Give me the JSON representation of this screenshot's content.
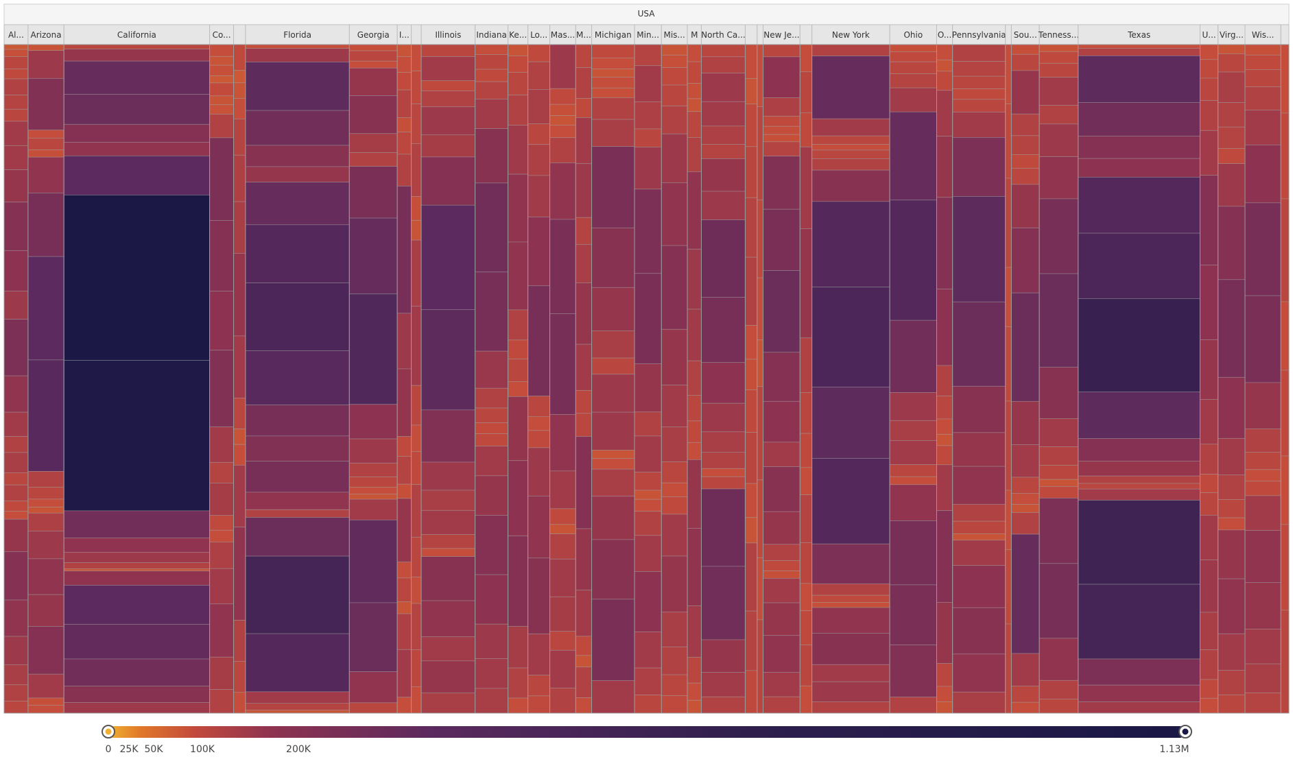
{
  "chart_data": {
    "type": "treemap",
    "root_label": "USA",
    "color_scale": {
      "min_label": "0",
      "max_label": "1.13M",
      "tick_labels": [
        "0",
        "25K",
        "50K",
        "100K",
        "200K",
        "1.13M"
      ],
      "tick_values": [
        0,
        25000,
        50000,
        100000,
        200000,
        1130000
      ],
      "stops": [
        "#f0b030",
        "#e0782a",
        "#c24a3c",
        "#8f3350",
        "#5b2a5e",
        "#2e1f4d",
        "#1a1845"
      ]
    },
    "groups": [
      {
        "label": "Al...",
        "share": 0.0185,
        "cells": [
          12,
          18,
          30,
          25,
          40,
          35,
          30,
          60,
          60,
          80,
          120,
          100,
          70,
          140,
          90,
          60,
          40,
          50,
          30,
          40,
          25,
          20,
          80,
          120,
          90,
          70,
          50,
          40,
          30
        ]
      },
      {
        "label": "Arizona",
        "share": 0.0277,
        "cells": [
          15,
          70,
          130,
          20,
          30,
          18,
          90,
          160,
          260,
          280,
          40,
          30,
          20,
          15,
          45,
          70,
          90,
          80,
          120,
          60,
          18,
          20
        ]
      },
      {
        "label": "California",
        "share": 0.1125,
        "cells": [
          30,
          80,
          220,
          200,
          120,
          90,
          260,
          1100,
          1000,
          180,
          95,
          70,
          40,
          15,
          95,
          260,
          230,
          180,
          110,
          70
        ]
      },
      {
        "label": "Co...",
        "share": 0.0185,
        "cells": [
          20,
          15,
          18,
          12,
          22,
          15,
          16,
          40,
          140,
          120,
          100,
          130,
          60,
          35,
          55,
          25,
          20,
          45,
          60,
          90,
          55,
          40
        ]
      },
      {
        "label": "",
        "share": 0.0092,
        "cells": [
          25,
          12,
          15,
          20,
          35,
          45,
          50,
          80,
          60,
          30,
          15,
          20,
          60,
          90,
          40,
          30,
          20
        ]
      },
      {
        "label": "Florida",
        "share": 0.0802,
        "cells": [
          20,
          70,
          250,
          180,
          110,
          80,
          220,
          300,
          350,
          280,
          160,
          130,
          160,
          90,
          40,
          200,
          400,
          300,
          60,
          35,
          15
        ]
      },
      {
        "label": "Georgia",
        "share": 0.037,
        "cells": [
          18,
          30,
          20,
          80,
          110,
          55,
          40,
          150,
          220,
          320,
          100,
          70,
          40,
          30,
          20,
          15,
          60,
          240,
          200,
          90,
          30
        ]
      },
      {
        "label": "I...",
        "share": 0.0108,
        "cells": [
          15,
          20,
          22,
          35,
          18,
          28,
          40,
          160,
          70,
          85,
          25,
          35,
          18,
          80,
          20,
          30,
          15,
          45,
          60,
          20
        ]
      },
      {
        "label": "",
        "share": 0.0077,
        "cells": [
          20,
          25,
          30,
          40,
          18,
          15,
          50,
          60,
          30,
          20,
          25,
          40,
          30,
          20,
          35,
          28,
          20
        ]
      },
      {
        "label": "Illinois",
        "share": 0.0416,
        "cells": [
          30,
          60,
          25,
          40,
          70,
          55,
          120,
          260,
          250,
          130,
          70,
          50,
          60,
          35,
          20,
          110,
          90,
          60,
          80,
          50
        ]
      },
      {
        "label": "Indiana",
        "share": 0.0254,
        "cells": [
          20,
          30,
          25,
          35,
          60,
          110,
          180,
          160,
          75,
          40,
          30,
          22,
          25,
          60,
          80,
          120,
          100,
          70,
          60,
          50
        ]
      },
      {
        "label": "Ke...",
        "share": 0.0154,
        "cells": [
          15,
          22,
          30,
          40,
          65,
          90,
          90,
          40,
          25,
          30,
          20,
          85,
          100,
          120,
          55,
          40,
          20
        ]
      },
      {
        "label": "Lo...",
        "share": 0.0169,
        "cells": [
          25,
          40,
          50,
          30,
          45,
          60,
          100,
          160,
          30,
          20,
          25,
          70,
          90,
          110,
          60,
          30,
          25
        ]
      },
      {
        "label": "Mas...",
        "share": 0.02,
        "cells": [
          70,
          25,
          18,
          15,
          20,
          40,
          90,
          150,
          160,
          90,
          60,
          25,
          15,
          40,
          60,
          55,
          30,
          60,
          40
        ]
      },
      {
        "label": "M...",
        "share": 0.0123,
        "cells": [
          30,
          40,
          25,
          60,
          70,
          35,
          50,
          80,
          60,
          30,
          30,
          120,
          80,
          60,
          25,
          15,
          40,
          20
        ]
      },
      {
        "label": "Michigan",
        "share": 0.0331,
        "cells": [
          25,
          20,
          15,
          20,
          18,
          40,
          50,
          150,
          110,
          80,
          50,
          30,
          70,
          70,
          15,
          20,
          50,
          80,
          110,
          150,
          60
        ]
      },
      {
        "label": "Min...",
        "share": 0.0208,
        "cells": [
          35,
          60,
          45,
          30,
          70,
          140,
          150,
          80,
          40,
          60,
          30,
          15,
          20,
          40,
          60,
          100,
          60,
          45,
          30
        ]
      },
      {
        "label": "Mis...",
        "share": 0.02,
        "cells": [
          15,
          18,
          25,
          30,
          40,
          70,
          90,
          120,
          80,
          60,
          50,
          30,
          20,
          25,
          60,
          80,
          50,
          40,
          30,
          25
        ]
      },
      {
        "label": "M",
        "share": 0.0108,
        "cells": [
          20,
          25,
          18,
          15,
          30,
          40,
          90,
          70,
          60,
          40,
          30,
          25,
          20,
          80,
          90,
          60,
          30,
          20,
          15
        ]
      },
      {
        "label": "North Ca...",
        "share": 0.0339,
        "cells": [
          30,
          40,
          70,
          60,
          45,
          35,
          80,
          70,
          190,
          160,
          100,
          70,
          50,
          40,
          20,
          30,
          190,
          180,
          80,
          60,
          40
        ]
      },
      {
        "label": "",
        "share": 0.0092,
        "cells": [
          20,
          15,
          25,
          30,
          35,
          40,
          20,
          18,
          25,
          30,
          20,
          15,
          40,
          35,
          25
        ]
      },
      {
        "label": "",
        "share": 0.0046,
        "cells": [
          20,
          30,
          25,
          20,
          15,
          30,
          25,
          20,
          30
        ]
      },
      {
        "label": "New Je...",
        "share": 0.0285,
        "cells": [
          30,
          100,
          45,
          25,
          20,
          18,
          35,
          130,
          150,
          200,
          120,
          100,
          60,
          110,
          80,
          40,
          25,
          18,
          60,
          80,
          90,
          60,
          40
        ]
      },
      {
        "label": "",
        "share": 0.0092,
        "cells": [
          20,
          30,
          25,
          60,
          80,
          40,
          30,
          25,
          20,
          35,
          30,
          20,
          25,
          30,
          20
        ]
      },
      {
        "label": "New York",
        "share": 0.0601,
        "cells": [
          40,
          220,
          60,
          30,
          20,
          30,
          40,
          110,
          300,
          350,
          250,
          300,
          140,
          40,
          25,
          18,
          90,
          110,
          60,
          70,
          40
        ]
      },
      {
        "label": "Ohio",
        "share": 0.0362,
        "cells": [
          18,
          25,
          30,
          35,
          60,
          220,
          300,
          180,
          70,
          50,
          60,
          30,
          20,
          90,
          160,
          150,
          130,
          40
        ]
      },
      {
        "label": "O...",
        "share": 0.0123,
        "cells": [
          20,
          15,
          25,
          60,
          80,
          120,
          100,
          40,
          30,
          20,
          15,
          25,
          60,
          120,
          80,
          30,
          20,
          15
        ]
      },
      {
        "label": "Pennsylvania",
        "share": 0.0408,
        "cells": [
          40,
          35,
          30,
          25,
          30,
          60,
          140,
          250,
          200,
          110,
          80,
          90,
          40,
          30,
          15,
          60,
          100,
          110,
          90,
          50
        ]
      },
      {
        "label": "",
        "share": 0.0046,
        "cells": [
          20,
          25,
          30,
          20,
          25,
          30,
          20,
          25,
          30
        ]
      },
      {
        "label": "Sou...",
        "share": 0.0216,
        "cells": [
          18,
          30,
          80,
          40,
          35,
          25,
          30,
          80,
          120,
          200,
          80,
          60,
          30,
          20,
          15,
          40,
          220,
          60,
          30,
          20
        ]
      },
      {
        "label": "Tenness...",
        "share": 0.03,
        "cells": [
          15,
          25,
          30,
          60,
          40,
          70,
          90,
          160,
          200,
          110,
          60,
          40,
          30,
          15,
          25,
          140,
          160,
          90,
          40,
          30
        ]
      },
      {
        "label": "Texas",
        "share": 0.0941,
        "cells": [
          20,
          40,
          250,
          180,
          120,
          100,
          300,
          350,
          500,
          250,
          120,
          80,
          40,
          30,
          60,
          450,
          400,
          140,
          90,
          60
        ]
      },
      {
        "label": "U...",
        "share": 0.0139,
        "cells": [
          20,
          25,
          30,
          40,
          60,
          120,
          100,
          80,
          60,
          40,
          25,
          30,
          60,
          70,
          50,
          40,
          25,
          20
        ]
      },
      {
        "label": "Virg...",
        "share": 0.0208,
        "cells": [
          15,
          30,
          50,
          40,
          35,
          25,
          70,
          120,
          160,
          100,
          60,
          40,
          30,
          20,
          80,
          90,
          60,
          40,
          30
        ]
      },
      {
        "label": "Wis...",
        "share": 0.0277,
        "cells": [
          18,
          25,
          30,
          40,
          60,
          100,
          160,
          150,
          80,
          40,
          30,
          20,
          25,
          60,
          90,
          80,
          60,
          50,
          35
        ]
      },
      {
        "label": "",
        "share": 0.0062,
        "cells": [
          20,
          25,
          30,
          20,
          25,
          20,
          25,
          30
        ]
      }
    ]
  }
}
